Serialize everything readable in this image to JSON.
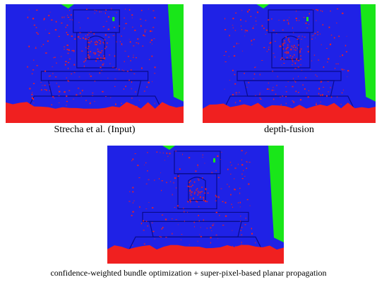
{
  "figure": {
    "panels": [
      {
        "caption": "Strecha et al. (Input)"
      },
      {
        "caption": "depth-fusion"
      },
      {
        "caption": "confidence-weighted bundle optimization + super-pixel-based planar propagation"
      }
    ],
    "colors": {
      "background_blue": "#1f22e6",
      "error_red": "#f02020",
      "missing_green": "#19e619",
      "edge_dark": "#0a0b8a"
    }
  }
}
